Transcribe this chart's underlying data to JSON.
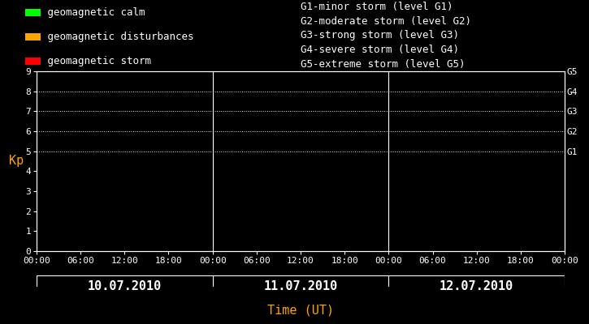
{
  "bg_color": "#000000",
  "plot_bg_color": "#000000",
  "text_color": "#ffffff",
  "orange_color": "#ffa500",
  "axis_color": "#ffffff",
  "grid_color": "#ffffff",
  "ylabel": "Kp",
  "xlabel": "Time (UT)",
  "ylim": [
    0,
    9
  ],
  "yticks": [
    0,
    1,
    2,
    3,
    4,
    5,
    6,
    7,
    8,
    9
  ],
  "days": [
    "10.07.2010",
    "11.07.2010",
    "12.07.2010"
  ],
  "hour_ticks": [
    "00:00",
    "06:00",
    "12:00",
    "18:00"
  ],
  "dotted_levels": [
    5,
    6,
    7,
    8,
    9
  ],
  "G_labels": [
    "G1",
    "G2",
    "G3",
    "G4",
    "G5"
  ],
  "G_levels": [
    5,
    6,
    7,
    8,
    9
  ],
  "legend_items": [
    {
      "color": "#00ff00",
      "label": "geomagnetic calm"
    },
    {
      "color": "#ffa500",
      "label": "geomagnetic disturbances"
    },
    {
      "color": "#ff0000",
      "label": "geomagnetic storm"
    }
  ],
  "storm_info": [
    "G1-minor storm (level G1)",
    "G2-moderate storm (level G2)",
    "G3-strong storm (level G3)",
    "G4-severe storm (level G4)",
    "G5-extreme storm (level G5)"
  ],
  "num_days": 3,
  "font_family": "monospace",
  "font_size": 8,
  "legend_font_size": 9,
  "day_label_font_size": 11,
  "time_label_font_size": 11,
  "kp_font_size": 11
}
